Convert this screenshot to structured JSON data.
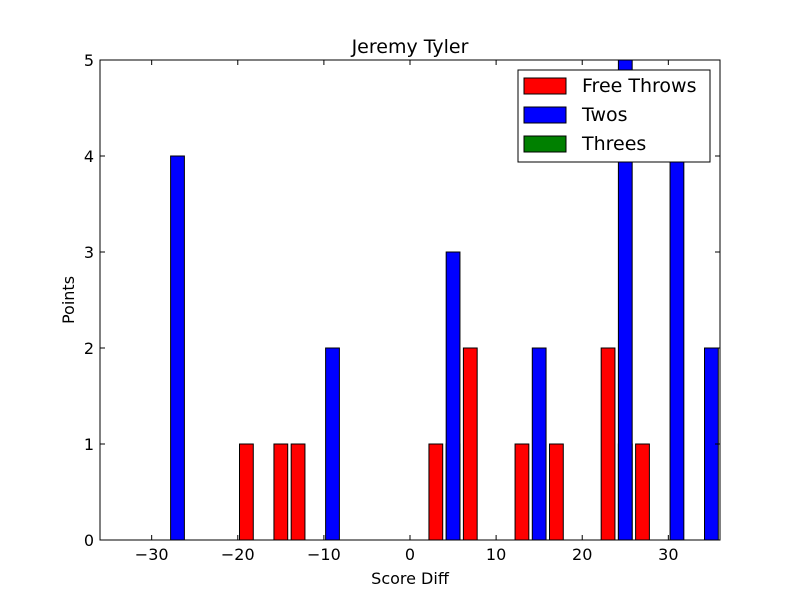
{
  "chart_data": {
    "type": "bar",
    "title": "Jeremy Tyler",
    "xlabel": "Score Diff",
    "ylabel": "Points",
    "xlim": [
      -36,
      36
    ],
    "ylim": [
      0,
      5
    ],
    "xticks": [
      -30,
      -20,
      -10,
      0,
      10,
      20,
      30
    ],
    "yticks": [
      0,
      1,
      2,
      3,
      4,
      5
    ],
    "xtick_labels": [
      "−30",
      "−20",
      "−10",
      "0",
      "10",
      "20",
      "30"
    ],
    "ytick_labels": [
      "0",
      "1",
      "2",
      "3",
      "4",
      "5"
    ],
    "grid": false,
    "legend_position": "top-right",
    "bar_width": 1.6,
    "x": [
      -35,
      -33,
      -31,
      -29,
      -27,
      -25,
      -23,
      -21,
      -19,
      -17,
      -15,
      -13,
      -11,
      -9,
      -7,
      -5,
      -3,
      -1,
      1,
      3,
      5,
      7,
      9,
      11,
      13,
      15,
      17,
      19,
      21,
      23,
      25,
      27,
      29,
      31,
      33,
      35
    ],
    "series": [
      {
        "name": "Free Throws",
        "color": "#ff0000",
        "values": [
          0,
          0,
          0,
          0,
          0,
          0,
          0,
          0,
          1,
          0,
          1,
          1,
          0,
          0,
          0,
          0,
          0,
          0,
          0,
          1,
          1,
          2,
          0,
          0,
          1,
          0,
          1,
          0,
          0,
          2,
          1,
          1,
          0,
          0,
          0,
          0
        ]
      },
      {
        "name": "Twos",
        "color": "#0000ff",
        "values": [
          0,
          0,
          0,
          0,
          4,
          0,
          0,
          0,
          0,
          0,
          0,
          0,
          0,
          2,
          0,
          0,
          0,
          0,
          0,
          0,
          3,
          0,
          0,
          0,
          0,
          2,
          0,
          0,
          0,
          0,
          5,
          0,
          0,
          4,
          0,
          2
        ]
      },
      {
        "name": "Threes",
        "color": "#008000",
        "values": [
          0,
          0,
          0,
          0,
          0,
          0,
          0,
          0,
          0,
          0,
          0,
          0,
          0,
          0,
          0,
          0,
          0,
          0,
          0,
          0,
          0,
          0,
          0,
          0,
          0,
          0,
          0,
          0,
          0,
          0,
          0,
          0,
          0,
          0,
          0,
          0
        ]
      }
    ]
  }
}
